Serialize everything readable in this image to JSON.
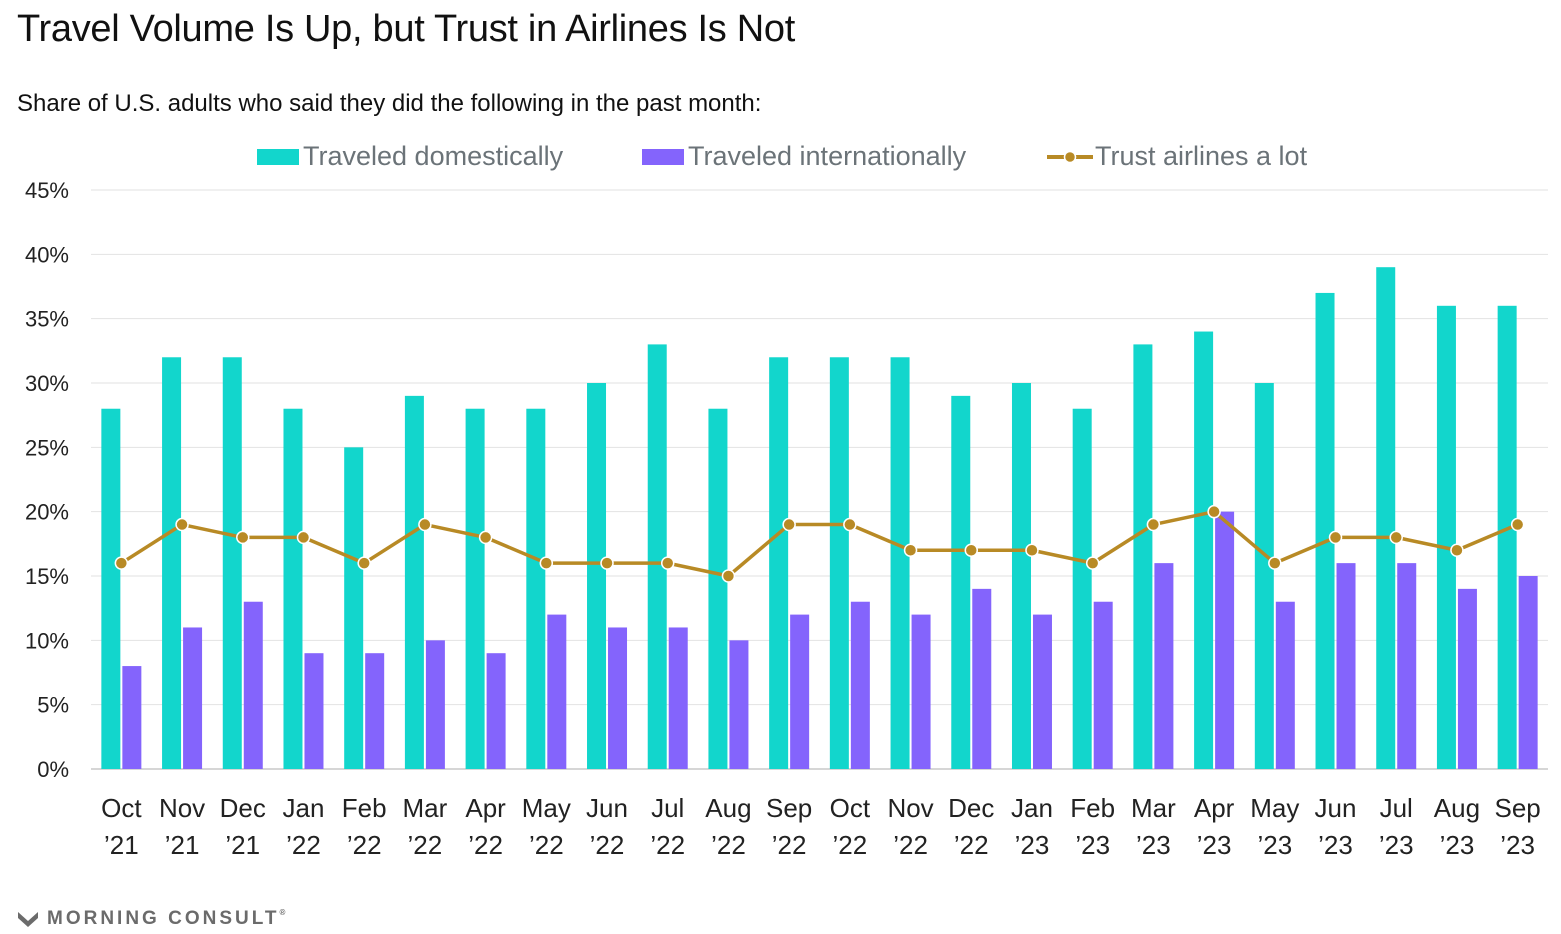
{
  "title": "Travel Volume Is Up, but Trust in Airlines Is Not",
  "subtitle": "Share of U.S. adults who said they did the following in the past month:",
  "brand": "MORNING CONSULT",
  "brand_mark": "®",
  "colors": {
    "domestic": "#12d6cc",
    "international": "#8464fc",
    "trust": "#b88a25",
    "grid": "#e2e2e2",
    "axis": "#c8c8c8"
  },
  "chart_data": {
    "type": "bar",
    "categories": [
      [
        "Oct",
        "’21"
      ],
      [
        "Nov",
        "’21"
      ],
      [
        "Dec",
        "’21"
      ],
      [
        "Jan",
        "’22"
      ],
      [
        "Feb",
        "’22"
      ],
      [
        "Mar",
        "’22"
      ],
      [
        "Apr",
        "’22"
      ],
      [
        "May",
        "’22"
      ],
      [
        "Jun",
        "’22"
      ],
      [
        "Jul",
        "’22"
      ],
      [
        "Aug",
        "’22"
      ],
      [
        "Sep",
        "’22"
      ],
      [
        "Oct",
        "’22"
      ],
      [
        "Nov",
        "’22"
      ],
      [
        "Dec",
        "’22"
      ],
      [
        "Jan",
        "’23"
      ],
      [
        "Feb",
        "’23"
      ],
      [
        "Mar",
        "’23"
      ],
      [
        "Apr",
        "’23"
      ],
      [
        "May",
        "’23"
      ],
      [
        "Jun",
        "’23"
      ],
      [
        "Jul",
        "’23"
      ],
      [
        "Aug",
        "’23"
      ],
      [
        "Sep",
        "’23"
      ]
    ],
    "series": [
      {
        "name": "Traveled domestically",
        "type": "bar",
        "values": [
          28,
          32,
          32,
          28,
          25,
          29,
          28,
          28,
          30,
          33,
          28,
          32,
          32,
          32,
          29,
          30,
          28,
          33,
          34,
          30,
          37,
          39,
          36,
          36
        ]
      },
      {
        "name": "Traveled internationally",
        "type": "bar",
        "values": [
          8,
          11,
          13,
          9,
          9,
          10,
          9,
          12,
          11,
          11,
          10,
          12,
          13,
          12,
          14,
          12,
          13,
          16,
          20,
          13,
          16,
          16,
          14,
          15
        ]
      },
      {
        "name": "Trust airlines a lot",
        "type": "line",
        "values": [
          16,
          19,
          18,
          18,
          16,
          19,
          18,
          16,
          16,
          16,
          15,
          19,
          19,
          17,
          17,
          17,
          16,
          19,
          20,
          16,
          18,
          18,
          17,
          19
        ]
      }
    ],
    "ylim": [
      0,
      45
    ],
    "yticks": [
      0,
      5,
      10,
      15,
      20,
      25,
      30,
      35,
      40,
      45
    ],
    "ytick_suffix": "%",
    "grid": true,
    "legend_position": "top-center"
  }
}
